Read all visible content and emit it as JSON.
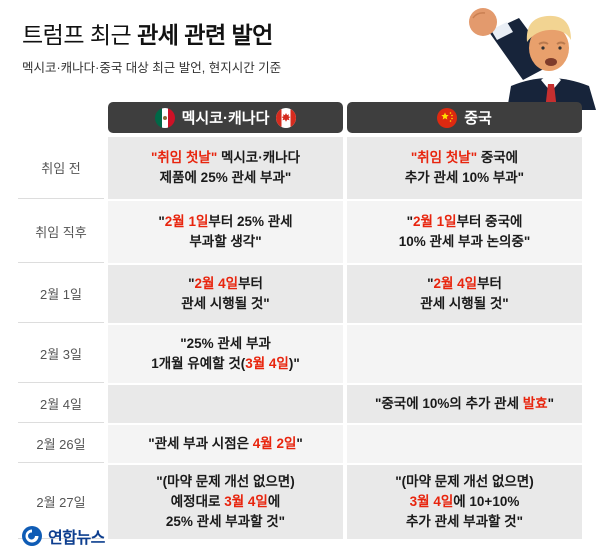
{
  "header": {
    "title_light": "트럼프 최근 ",
    "title_bold": "관세 관련 발언",
    "subtitle": "멕시코·캐나다·중국 대상 최근 발언, 현지시간 기준"
  },
  "columns": {
    "mx": {
      "label": "멕시코·캐나다",
      "flag_icons": [
        "mexico-flag-icon",
        "canada-flag-icon"
      ]
    },
    "cn": {
      "label": "중국",
      "flag_icons": [
        "china-flag-icon"
      ]
    }
  },
  "rows": [
    {
      "date": "취임 전",
      "mx": [
        {
          "t": "\"취임 첫날\"",
          "red": true
        },
        {
          "t": " 멕시코·캐나다\n제품에 25% 관세 부과\""
        }
      ],
      "cn": [
        {
          "t": "\"취임 첫날\"",
          "red": true
        },
        {
          "t": " 중국에\n추가 관세 10% 부과\""
        }
      ]
    },
    {
      "date": "취임 직후",
      "mx": [
        {
          "t": "\""
        },
        {
          "t": "2월 1일",
          "red": true
        },
        {
          "t": "부터 25% 관세\n부과할 생각\""
        }
      ],
      "cn": [
        {
          "t": "\""
        },
        {
          "t": "2월 1일",
          "red": true
        },
        {
          "t": "부터 중국에\n10% 관세 부과 논의중\""
        }
      ]
    },
    {
      "date": "2월 1일",
      "mx": [
        {
          "t": "\""
        },
        {
          "t": "2월 4일",
          "red": true
        },
        {
          "t": "부터\n관세 시행될 것\""
        }
      ],
      "cn": [
        {
          "t": "\""
        },
        {
          "t": "2월 4일",
          "red": true
        },
        {
          "t": "부터\n관세 시행될 것\""
        }
      ]
    },
    {
      "date": "2월 3일",
      "mx": [
        {
          "t": "\"25% 관세 부과\n1개월 유예할 것("
        },
        {
          "t": "3월 4일",
          "red": true
        },
        {
          "t": ")\""
        }
      ],
      "cn": []
    },
    {
      "date": "2월 4일",
      "mx": [],
      "cn": [
        {
          "t": "\"중국에 10%의 추가 관세 "
        },
        {
          "t": "발효",
          "red": true
        },
        {
          "t": "\""
        }
      ]
    },
    {
      "date": "2월 26일",
      "mx": [
        {
          "t": "\"관세 부과 시점은 "
        },
        {
          "t": "4월 2일",
          "red": true
        },
        {
          "t": "\""
        }
      ],
      "cn": []
    },
    {
      "date": "2월 27일",
      "mx": [
        {
          "t": "\"(마약 문제 개선 없으면)\n예정대로 "
        },
        {
          "t": "3월 4일",
          "red": true
        },
        {
          "t": "에\n25% 관세 부과할 것\""
        }
      ],
      "cn": [
        {
          "t": "\"(마약 문제 개선 없으면)\n"
        },
        {
          "t": "3월 4일",
          "red": true
        },
        {
          "t": "에 10+10%\n추가 관세 부과할 것\""
        }
      ]
    }
  ],
  "footer": {
    "logo_text": "연합뉴스"
  },
  "colors": {
    "accent_red": "#e8240d",
    "header_pill_bg": "#3e3e3e",
    "row_odd_bg": "#e9e9e9",
    "row_even_bg": "#f4f4f4",
    "logo_blue": "#0d3e8f"
  }
}
